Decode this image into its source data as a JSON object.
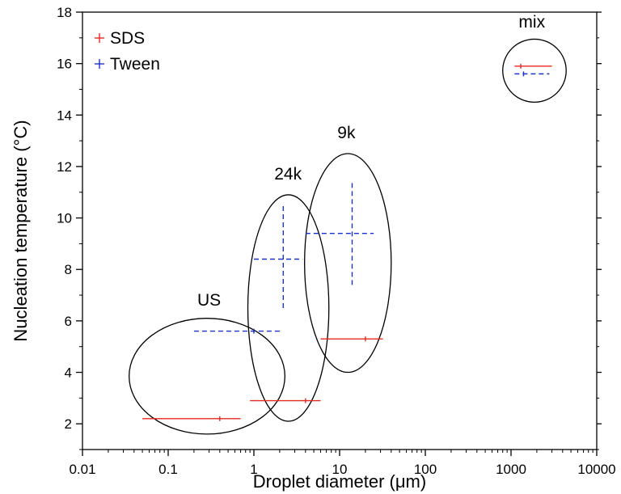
{
  "chart_data": {
    "type": "scatter",
    "title": "",
    "xlabel": "Droplet diameter (μm)",
    "ylabel": "Nucleation temperature (°C)",
    "x_scale": "log",
    "xlim": [
      0.01,
      10000
    ],
    "ylim": [
      1,
      18
    ],
    "x_ticks": [
      0.01,
      0.1,
      1,
      10,
      100,
      1000,
      10000
    ],
    "x_tick_labels": [
      "0.01",
      "0.1",
      "1",
      "10",
      "100",
      "1000",
      "10000"
    ],
    "y_ticks": [
      2,
      4,
      6,
      8,
      10,
      12,
      14,
      16,
      18
    ],
    "y_tick_labels": [
      "2",
      "4",
      "6",
      "8",
      "10",
      "12",
      "14",
      "16",
      "18"
    ],
    "grid": false,
    "legend_position": "top-left",
    "series": [
      {
        "name": "SDS",
        "color": "#e8271d",
        "line_style": "solid",
        "points": [
          {
            "x": 0.4,
            "y": 2.2,
            "xmin": 0.05,
            "xmax": 0.7,
            "ymin": 2.2,
            "ymax": 2.2
          },
          {
            "x": 4,
            "y": 2.9,
            "xmin": 0.9,
            "xmax": 6,
            "ymin": 2.9,
            "ymax": 2.9
          },
          {
            "x": 20,
            "y": 5.3,
            "xmin": 6,
            "xmax": 32,
            "ymin": 5.3,
            "ymax": 5.3
          },
          {
            "x": 1300,
            "y": 15.9,
            "xmin": 1100,
            "xmax": 3000,
            "ymin": 15.9,
            "ymax": 15.9
          }
        ]
      },
      {
        "name": "Tween",
        "color": "#1a33c8",
        "line_style": "dashed",
        "points": [
          {
            "x": 1,
            "y": 5.6,
            "xmin": 0.2,
            "xmax": 2.1,
            "ymin": 5.6,
            "ymax": 5.6
          },
          {
            "x": 2.2,
            "y": 8.4,
            "xmin": 1,
            "xmax": 3.7,
            "ymin": 6.5,
            "ymax": 10.5
          },
          {
            "x": 14,
            "y": 9.4,
            "xmin": 4,
            "xmax": 25,
            "ymin": 7.4,
            "ymax": 11.4
          },
          {
            "x": 1400,
            "y": 15.6,
            "xmin": 1100,
            "xmax": 2800,
            "ymin": 15.6,
            "ymax": 15.6
          }
        ]
      }
    ],
    "groups": [
      {
        "label": "US",
        "cx": 0.28,
        "cy": 3.85,
        "x_from": 0.035,
        "x_to": 2.3,
        "y_from": 1.6,
        "y_to": 6.1,
        "label_x": 0.3,
        "label_y": 6.6
      },
      {
        "label": "24k",
        "cx": 2.5,
        "cy": 6.3,
        "x_from": 0.85,
        "x_to": 7.5,
        "y_from": 2.1,
        "y_to": 10.9,
        "label_x": 2.5,
        "label_y": 11.5
      },
      {
        "label": "9k",
        "cx": 12,
        "cy": 8.2,
        "x_from": 3.9,
        "x_to": 40,
        "y_from": 4.0,
        "y_to": 12.5,
        "label_x": 12,
        "label_y": 13.1
      },
      {
        "label": "mix",
        "cx": 1750,
        "cy": 15.7,
        "x_from": 800,
        "x_to": 4400,
        "y_from": 14.5,
        "y_to": 16.95,
        "label_x": 1750,
        "label_y": 17.4
      }
    ]
  }
}
